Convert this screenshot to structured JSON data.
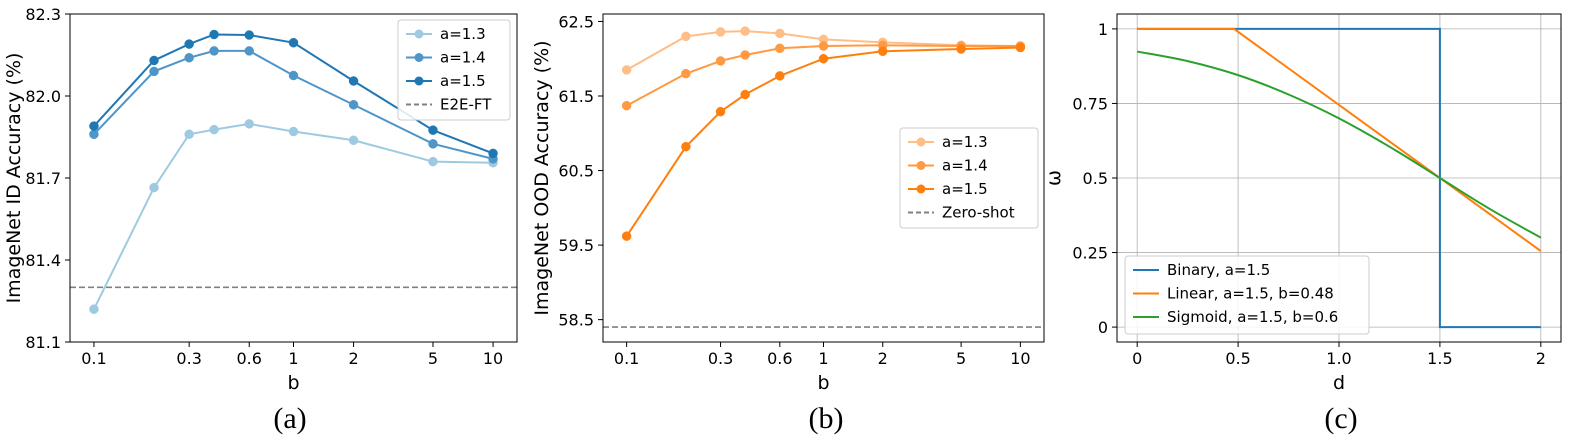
{
  "chart_data": [
    {
      "type": "line",
      "panel": "(a)",
      "xlabel": "b",
      "ylabel": "ImageNet ID Accuracy (%)",
      "x_scale": "log",
      "x_ticks": [
        0.1,
        0.3,
        0.6,
        1,
        2,
        5,
        10
      ],
      "x_tick_labels": [
        "0.1",
        "0.3",
        "0.6",
        "1",
        "2",
        "5",
        "10"
      ],
      "ylim": [
        81.1,
        82.3
      ],
      "y_ticks": [
        81.1,
        81.4,
        81.7,
        82.0,
        82.3
      ],
      "y_tick_labels": [
        "81.1",
        "81.4",
        "81.7",
        "82.0",
        "82.3"
      ],
      "grid": false,
      "legend_position": "top-right",
      "x": [
        0.1,
        0.2,
        0.3,
        0.4,
        0.6,
        1,
        2,
        5,
        10
      ],
      "series": [
        {
          "name": "a=1.3",
          "color": "#9ecae1",
          "values": [
            81.22,
            81.665,
            81.86,
            81.877,
            81.898,
            81.87,
            81.838,
            81.76,
            81.756
          ]
        },
        {
          "name": "a=1.4",
          "color": "#4f96c8",
          "values": [
            81.86,
            82.09,
            82.14,
            82.165,
            82.165,
            82.075,
            81.968,
            81.825,
            81.77
          ]
        },
        {
          "name": "a=1.5",
          "color": "#1f77b4",
          "values": [
            81.89,
            82.13,
            82.19,
            82.225,
            82.223,
            82.195,
            82.055,
            81.875,
            81.79
          ]
        }
      ],
      "reference_line": {
        "name": "E2E-FT",
        "y": 81.3,
        "color": "#808080",
        "style": "dashed"
      }
    },
    {
      "type": "line",
      "panel": "(b)",
      "xlabel": "b",
      "ylabel": "ImageNet OOD Accuracy (%)",
      "x_scale": "log",
      "x_ticks": [
        0.1,
        0.3,
        0.6,
        1,
        2,
        5,
        10
      ],
      "x_tick_labels": [
        "0.1",
        "0.3",
        "0.6",
        "1",
        "2",
        "5",
        "10"
      ],
      "ylim": [
        58.2,
        62.6
      ],
      "y_ticks": [
        58.5,
        59.5,
        60.5,
        61.5,
        62.5
      ],
      "y_tick_labels": [
        "58.5",
        "59.5",
        "60.5",
        "61.5",
        "62.5"
      ],
      "grid": false,
      "legend_position": "center-right",
      "x": [
        0.1,
        0.2,
        0.3,
        0.4,
        0.6,
        1,
        2,
        5,
        10
      ],
      "series": [
        {
          "name": "a=1.3",
          "color": "#ffbe86",
          "values": [
            61.85,
            62.3,
            62.36,
            62.37,
            62.34,
            62.26,
            62.22,
            62.18,
            62.17
          ]
        },
        {
          "name": "a=1.4",
          "color": "#ff9a42",
          "values": [
            61.37,
            61.8,
            61.97,
            62.05,
            62.14,
            62.17,
            62.18,
            62.17,
            62.17
          ]
        },
        {
          "name": "a=1.5",
          "color": "#ff7f0e",
          "values": [
            59.62,
            60.82,
            61.29,
            61.52,
            61.77,
            62.0,
            62.1,
            62.13,
            62.15
          ]
        }
      ],
      "reference_line": {
        "name": "Zero-shot",
        "y": 58.4,
        "color": "#808080",
        "style": "dashed"
      }
    },
    {
      "type": "line",
      "panel": "(c)",
      "xlabel": "d",
      "ylabel": "ω",
      "xlim": [
        -0.1,
        2.1
      ],
      "x_ticks": [
        0,
        0.5,
        1.0,
        1.5,
        2
      ],
      "x_tick_labels": [
        "0",
        "0.5",
        "1.0",
        "1.5",
        "2"
      ],
      "ylim": [
        -0.05,
        1.05
      ],
      "y_ticks": [
        0,
        0.25,
        0.5,
        0.75,
        1
      ],
      "y_tick_labels": [
        "0",
        "0.25",
        "0.5",
        "0.75",
        "1"
      ],
      "grid": true,
      "legend_position": "lower-left",
      "series": [
        {
          "name": "Binary, a=1.5",
          "color": "#1f77b4",
          "x": [
            0,
            1.5,
            1.5,
            2
          ],
          "values": [
            1,
            1,
            0,
            0
          ]
        },
        {
          "name": "Linear, a=1.5, b=0.48",
          "color": "#ff7f0e",
          "x": [
            0,
            0.48,
            2
          ],
          "values": [
            1,
            1,
            0.255
          ]
        },
        {
          "name": "Sigmoid, a=1.5, b=0.6",
          "color": "#2ca02c",
          "x": [
            0,
            0.25,
            0.5,
            0.75,
            1.0,
            1.25,
            1.5,
            1.75,
            2.0
          ],
          "values": [
            0.924,
            0.892,
            0.845,
            0.78,
            0.7,
            0.605,
            0.5,
            0.395,
            0.3
          ]
        }
      ]
    }
  ]
}
